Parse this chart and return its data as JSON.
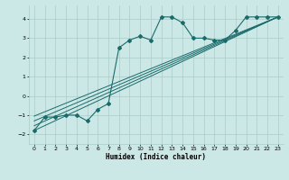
{
  "xlabel": "Humidex (Indice chaleur)",
  "background_color": "#cce8e6",
  "grid_color": "#aaccca",
  "line_color": "#1a6b6b",
  "xlim": [
    -0.5,
    23.5
  ],
  "ylim": [
    -2.5,
    4.7
  ],
  "xticks": [
    0,
    1,
    2,
    3,
    4,
    5,
    6,
    7,
    8,
    9,
    10,
    11,
    12,
    13,
    14,
    15,
    16,
    17,
    18,
    19,
    20,
    21,
    22,
    23
  ],
  "yticks": [
    -2,
    -1,
    0,
    1,
    2,
    3,
    4
  ],
  "zigzag_x": [
    0,
    1,
    2,
    3,
    4,
    5,
    6,
    7,
    8,
    9,
    10,
    11,
    12,
    13,
    14,
    15,
    16,
    17,
    18,
    19,
    20,
    21,
    22,
    23
  ],
  "zigzag_y": [
    -1.8,
    -1.1,
    -1.1,
    -1.0,
    -1.0,
    -1.3,
    -0.7,
    -0.4,
    2.5,
    2.9,
    3.1,
    2.9,
    4.1,
    4.1,
    3.8,
    3.0,
    3.0,
    2.9,
    2.9,
    3.4,
    4.1,
    4.1,
    4.1,
    4.1
  ],
  "straight_lines": [
    {
      "x0": 0,
      "y0": -1.8,
      "x1": 23,
      "y1": 4.1
    },
    {
      "x0": 0,
      "y0": -1.55,
      "x1": 23,
      "y1": 4.1
    },
    {
      "x0": 0,
      "y0": -1.3,
      "x1": 23,
      "y1": 4.1
    },
    {
      "x0": 0,
      "y0": -1.05,
      "x1": 23,
      "y1": 4.1
    }
  ]
}
